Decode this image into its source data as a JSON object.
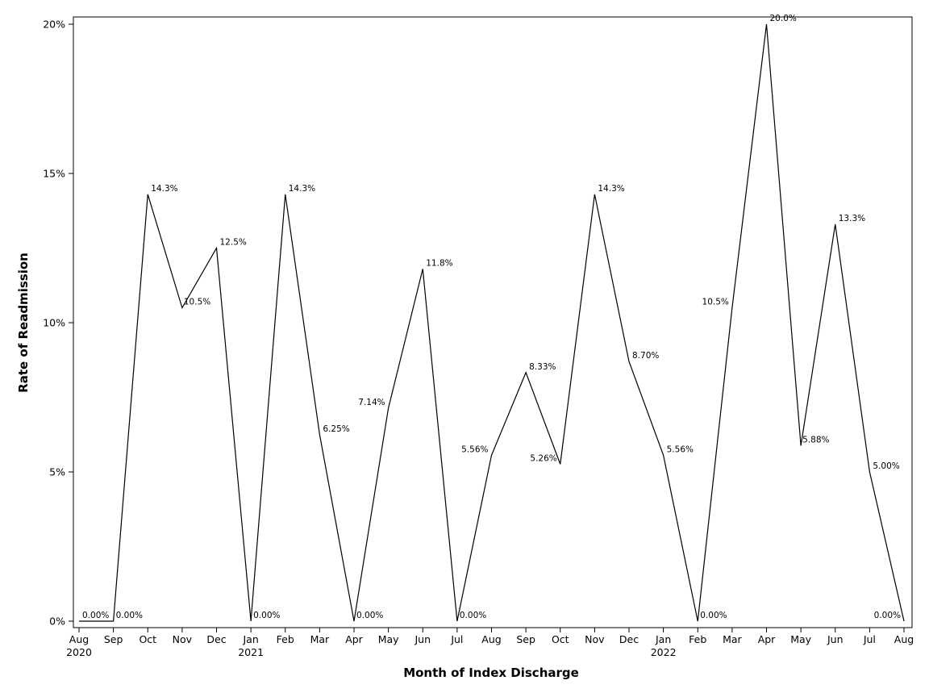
{
  "chart_data": {
    "type": "line",
    "xlabel": "Month of Index Discharge",
    "ylabel": "Rate of Readmission",
    "ylim": [
      0,
      20
    ],
    "yticks": [
      "0%",
      "5%",
      "10%",
      "15%",
      "20%"
    ],
    "yticks_values": [
      0,
      5,
      10,
      15,
      20
    ],
    "grid": false,
    "x": [
      "Aug 2020",
      "Sep 2020",
      "Oct 2020",
      "Nov 2020",
      "Dec 2020",
      "Jan 2021",
      "Feb 2021",
      "Mar 2021",
      "Apr 2021",
      "May 2021",
      "Jun 2021",
      "Jul 2021",
      "Aug 2021",
      "Sep 2021",
      "Oct 2021",
      "Nov 2021",
      "Dec 2021",
      "Jan 2022",
      "Feb 2022",
      "Mar 2022",
      "Apr 2022",
      "May 2022",
      "Jun 2022",
      "Jul 2022",
      "Aug 2022"
    ],
    "x_tick_month": [
      "Aug",
      "Sep",
      "Oct",
      "Nov",
      "Dec",
      "Jan",
      "Feb",
      "Mar",
      "Apr",
      "May",
      "Jun",
      "Jul",
      "Aug",
      "Sep",
      "Oct",
      "Nov",
      "Dec",
      "Jan",
      "Feb",
      "Mar",
      "Apr",
      "May",
      "Jun",
      "Jul",
      "Aug"
    ],
    "x_tick_year": [
      "2020",
      "",
      "",
      "",
      "",
      "2021",
      "",
      "",
      "",
      "",
      "",
      "",
      "",
      "",
      "",
      "",
      "",
      "2022",
      "",
      "",
      "",
      "",
      "",
      "",
      ""
    ],
    "values": [
      0,
      0,
      14.3,
      10.5,
      12.5,
      0,
      14.3,
      6.25,
      0,
      7.14,
      11.8,
      0,
      5.56,
      8.33,
      5.26,
      14.3,
      8.7,
      5.56,
      0,
      10.5,
      20.0,
      5.88,
      13.3,
      5.0,
      0
    ],
    "data_labels": [
      "0.00%",
      "0.00%",
      "14.3%",
      "10.5%",
      "12.5%",
      "0.00%",
      "14.3%",
      "6.25%",
      "0.00%",
      "7.14%",
      "11.8%",
      "0.00%",
      "5.56%",
      "8.33%",
      "5.26%",
      "14.3%",
      "8.70%",
      "5.56%",
      "0.00%",
      "10.5%",
      "20.0%",
      "5.88%",
      "13.3%",
      "5.00%",
      "0.00%"
    ],
    "line_color": "#000000"
  }
}
